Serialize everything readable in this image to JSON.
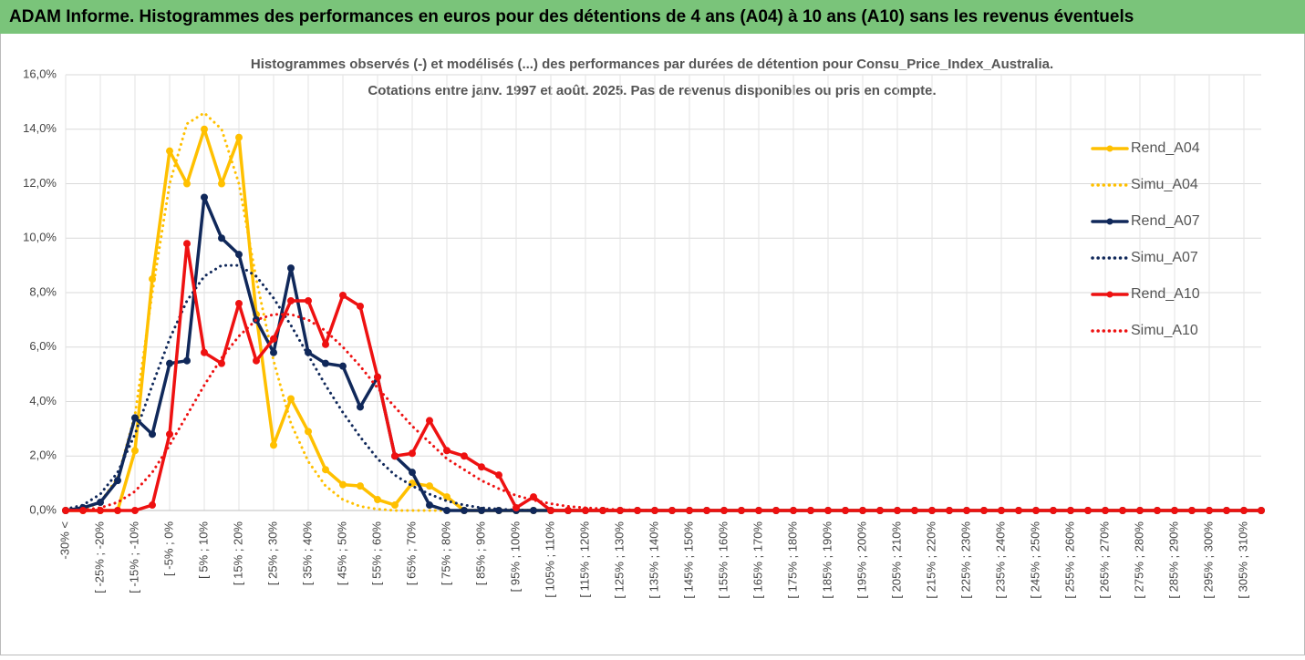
{
  "chart_data": {
    "type": "line",
    "title": "ADAM Informe. Histogrammes des performances en euros pour des détentions de 4 ans (A04) à 10 ans (A10) sans les revenus éventuels",
    "subtitle": [
      "Histogrammes observés (-) et modélisés (...) des performances par durées de détention pour Consu_Price_Index_Australia.",
      "Cotations entre janv. 1997 et août. 2025. Pas de revenus disponibles ou pris en compte."
    ],
    "categories": [
      "-30% <",
      null,
      "[ -25% ; -20%",
      null,
      "[ -15% ; -10%",
      null,
      "[ -5% ; 0%",
      null,
      "[ 5% ; 10%",
      null,
      "[ 15% ; 20%",
      null,
      "[ 25% ; 30%",
      null,
      "[ 35% ; 40%",
      null,
      "[ 45% ; 50%",
      null,
      "[ 55% ; 60%",
      null,
      "[ 65% ; 70%",
      null,
      "[ 75% ; 80%",
      null,
      "[ 85% ; 90%",
      null,
      "[ 95% ; 100%",
      null,
      "[ 105% ; 110%",
      null,
      "[ 115% ; 120%",
      null,
      "[ 125% ; 130%",
      null,
      "[ 135% ; 140%",
      null,
      "[ 145% ; 150%",
      null,
      "[ 155% ; 160%",
      null,
      "[ 165% ; 170%",
      null,
      "[ 175% ; 180%",
      null,
      "[ 185% ; 190%",
      null,
      "[ 195% ; 200%",
      null,
      "[ 205% ; 210%",
      null,
      "[ 215% ; 220%",
      null,
      "[ 225% ; 230%",
      null,
      "[ 235% ; 240%",
      null,
      "[ 245% ; 250%",
      null,
      "[ 255% ; 260%",
      null,
      "[ 265% ; 270%",
      null,
      "[ 275% ; 280%",
      null,
      "[ 285% ; 290%",
      null,
      "[ 295% ; 300%",
      null,
      "[ 305% ; 310%",
      null
    ],
    "ylim": [
      0,
      16
    ],
    "yticks": [
      {
        "value": 0,
        "label": "0,0%"
      },
      {
        "value": 2,
        "label": "2,0%"
      },
      {
        "value": 4,
        "label": "4,0%"
      },
      {
        "value": 6,
        "label": "6,0%"
      },
      {
        "value": 8,
        "label": "8,0%"
      },
      {
        "value": 10,
        "label": "10,0%"
      },
      {
        "value": 12,
        "label": "12,0%"
      },
      {
        "value": 14,
        "label": "14,0%"
      },
      {
        "value": 16,
        "label": "16,0%"
      }
    ],
    "grid": true,
    "legend": "right",
    "series": [
      {
        "name": "Rend_A04",
        "color": "#ffc000",
        "style": "solid",
        "values": [
          0,
          0,
          0,
          0,
          2.2,
          8.5,
          13.2,
          12.0,
          14.0,
          12.0,
          13.7,
          7.2,
          2.4,
          4.1,
          2.9,
          1.5,
          0.95,
          0.9,
          0.4,
          0.2,
          1.0,
          0.9,
          0.5,
          0,
          0,
          0,
          0,
          0,
          0,
          0,
          0,
          0,
          0,
          0,
          0,
          0,
          0,
          0,
          0,
          0,
          0,
          0,
          0,
          0,
          0,
          0,
          0,
          0,
          0,
          0,
          0,
          0,
          0,
          0,
          0,
          0,
          0,
          0,
          0,
          0,
          0,
          0,
          0,
          0,
          0,
          0,
          0,
          0,
          0,
          0
        ]
      },
      {
        "name": "Simu_A04",
        "color": "#ffc000",
        "style": "dotted",
        "values": [
          0,
          0.05,
          0.3,
          1.2,
          3.5,
          8.0,
          12.0,
          14.2,
          14.6,
          14.0,
          12.0,
          8.5,
          5.5,
          3.2,
          1.8,
          0.9,
          0.4,
          0.15,
          0.05,
          0,
          0,
          0,
          0,
          0,
          0,
          0,
          0,
          0,
          0,
          0,
          0,
          0,
          0,
          0,
          0,
          0,
          0,
          0,
          0,
          0,
          0,
          0,
          0,
          0,
          0,
          0,
          0,
          0,
          0,
          0,
          0,
          0,
          0,
          0,
          0,
          0,
          0,
          0,
          0,
          0,
          0,
          0,
          0,
          0,
          0,
          0,
          0,
          0,
          0,
          0
        ]
      },
      {
        "name": "Rend_A07",
        "color": "#10285a",
        "style": "solid",
        "values": [
          0,
          0.1,
          0.3,
          1.1,
          3.4,
          2.8,
          5.4,
          5.5,
          11.5,
          10.0,
          9.4,
          7.0,
          5.8,
          8.9,
          5.8,
          5.4,
          5.3,
          3.8,
          4.9,
          2.0,
          1.4,
          0.2,
          0,
          0,
          0,
          0,
          0,
          0,
          0,
          0,
          0,
          0,
          0,
          0,
          0,
          0,
          0,
          0,
          0,
          0,
          0,
          0,
          0,
          0,
          0,
          0,
          0,
          0,
          0,
          0,
          0,
          0,
          0,
          0,
          0,
          0,
          0,
          0,
          0,
          0,
          0,
          0,
          0,
          0,
          0,
          0,
          0,
          0,
          0,
          0
        ]
      },
      {
        "name": "Simu_A07",
        "color": "#10285a",
        "style": "dotted",
        "values": [
          0.05,
          0.2,
          0.6,
          1.4,
          2.8,
          4.6,
          6.3,
          7.7,
          8.6,
          9.0,
          9.0,
          8.6,
          7.8,
          6.8,
          5.7,
          4.6,
          3.6,
          2.7,
          1.9,
          1.3,
          0.9,
          0.6,
          0.35,
          0.2,
          0.1,
          0.05,
          0.02,
          0,
          0,
          0,
          0,
          0,
          0,
          0,
          0,
          0,
          0,
          0,
          0,
          0,
          0,
          0,
          0,
          0,
          0,
          0,
          0,
          0,
          0,
          0,
          0,
          0,
          0,
          0,
          0,
          0,
          0,
          0,
          0,
          0,
          0,
          0,
          0,
          0,
          0,
          0,
          0,
          0,
          0,
          0
        ]
      },
      {
        "name": "Rend_A10",
        "color": "#ee1111",
        "style": "solid",
        "values": [
          0,
          0,
          0,
          0,
          0,
          0.2,
          2.8,
          9.8,
          5.8,
          5.4,
          7.6,
          5.5,
          6.3,
          7.7,
          7.7,
          6.1,
          7.9,
          7.5,
          4.9,
          2.0,
          2.1,
          3.3,
          2.2,
          2.0,
          1.6,
          1.3,
          0.1,
          0.5,
          0,
          0,
          0,
          0,
          0,
          0,
          0,
          0,
          0,
          0,
          0,
          0,
          0,
          0,
          0,
          0,
          0,
          0,
          0,
          0,
          0,
          0,
          0,
          0,
          0,
          0,
          0,
          0,
          0,
          0,
          0,
          0,
          0,
          0,
          0,
          0,
          0,
          0,
          0,
          0,
          0,
          0
        ]
      },
      {
        "name": "Simu_A10",
        "color": "#ee1111",
        "style": "dotted",
        "values": [
          0,
          0.02,
          0.1,
          0.3,
          0.7,
          1.4,
          2.4,
          3.5,
          4.6,
          5.6,
          6.4,
          7.0,
          7.2,
          7.2,
          7.0,
          6.6,
          6.0,
          5.3,
          4.5,
          3.8,
          3.1,
          2.5,
          1.9,
          1.5,
          1.1,
          0.8,
          0.55,
          0.38,
          0.25,
          0.15,
          0.1,
          0.06,
          0.03,
          0.02,
          0,
          0,
          0,
          0,
          0,
          0,
          0,
          0,
          0,
          0,
          0,
          0,
          0,
          0,
          0,
          0,
          0,
          0,
          0,
          0,
          0,
          0,
          0,
          0,
          0,
          0,
          0,
          0,
          0,
          0,
          0,
          0,
          0,
          0,
          0,
          0
        ]
      }
    ]
  }
}
